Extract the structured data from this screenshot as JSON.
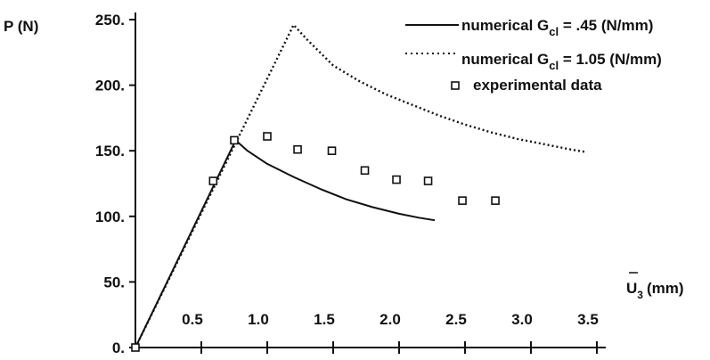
{
  "chart_data": {
    "type": "line",
    "ylabel": "P (N)",
    "xlabel_base": "U",
    "xlabel_sub": "3",
    "xlabel_unit": "(mm)",
    "xlim": [
      0,
      3.5
    ],
    "ylim": [
      0,
      250
    ],
    "x_ticks": [
      0.5,
      1.0,
      1.5,
      2.0,
      2.5,
      3.0,
      3.5
    ],
    "x_tick_labels": [
      "0.5",
      "1.0",
      "1.5",
      "2.0",
      "2.5",
      "3.0",
      "3.5"
    ],
    "y_ticks": [
      0,
      50,
      100,
      150,
      200,
      250
    ],
    "y_tick_labels": [
      "0.",
      "50.",
      "100.",
      "150.",
      "200.",
      "250."
    ],
    "grid": false,
    "legend_position": "top-right",
    "legend": [
      {
        "id": "s1",
        "label_prefix": "numerical  G",
        "label_sub": "cl",
        "label_suffix": " =  .45 (N/mm)",
        "style": "solid"
      },
      {
        "id": "s2",
        "label_prefix": "numerical  G",
        "label_sub": "cl",
        "label_suffix": " = 1.05 (N/mm)",
        "style": "dotted"
      },
      {
        "id": "s3",
        "label": "experimental data",
        "style": "marker"
      }
    ],
    "series": [
      {
        "id": "s1",
        "style": "solid",
        "x": [
          0,
          0.76,
          0.85,
          1.0,
          1.2,
          1.4,
          1.6,
          1.8,
          2.0,
          2.15,
          2.27
        ],
        "y": [
          0,
          158,
          150,
          140,
          130,
          121,
          113,
          107,
          102,
          99,
          97
        ]
      },
      {
        "id": "s2",
        "style": "dotted",
        "x": [
          0,
          1.2,
          1.3,
          1.5,
          1.7,
          1.9,
          2.1,
          2.3,
          2.5,
          2.7,
          2.9,
          3.1,
          3.3,
          3.42
        ],
        "y": [
          0,
          246,
          235,
          215,
          203,
          193,
          185,
          177,
          170,
          164,
          159,
          155,
          151,
          149
        ]
      },
      {
        "id": "s3",
        "style": "marker",
        "x": [
          0.0,
          0.59,
          0.75,
          1.0,
          1.23,
          1.49,
          1.74,
          1.98,
          2.22,
          2.48,
          2.73
        ],
        "y": [
          0,
          127,
          158,
          161,
          151,
          150,
          135,
          128,
          127,
          112,
          112
        ]
      }
    ]
  }
}
